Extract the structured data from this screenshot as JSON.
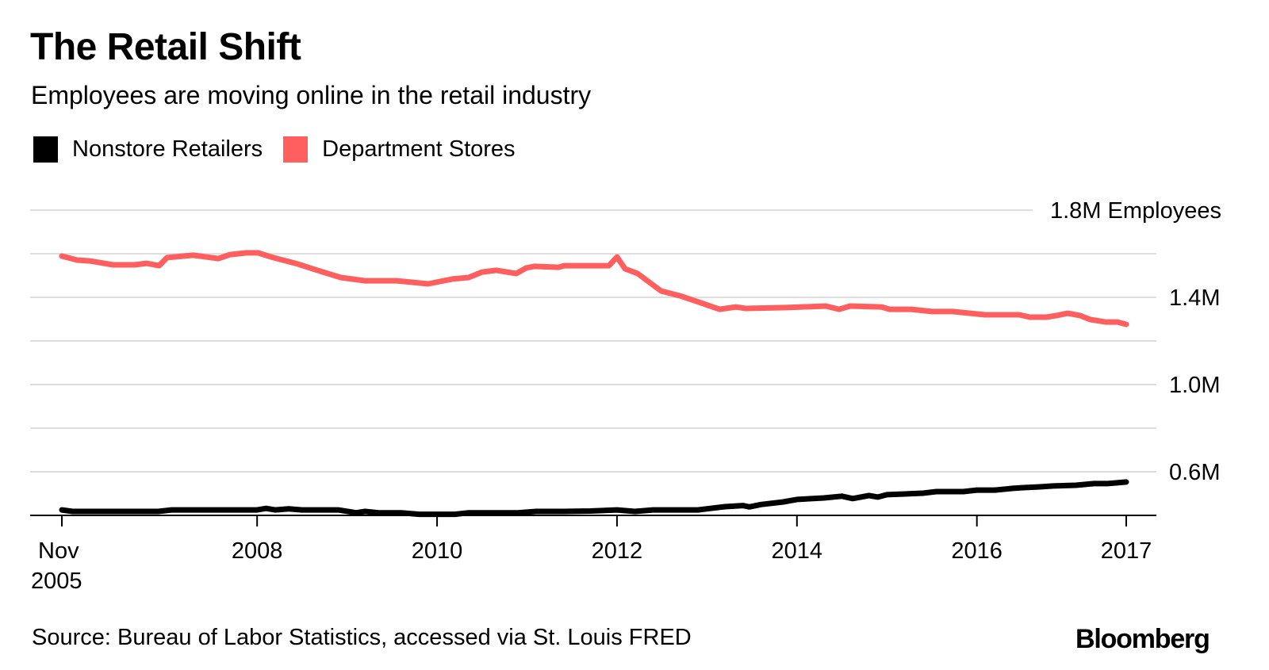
{
  "header": {
    "title": "The Retail Shift",
    "subtitle": "Employees are moving online in the retail industry"
  },
  "legend": [
    {
      "label": "Nonstore Retailers",
      "color": "#000000"
    },
    {
      "label": "Department Stores",
      "color": "#ff5f5f"
    }
  ],
  "footer": {
    "source": "Source: Bureau of Labor Statistics, accessed via St. Louis FRED",
    "brand": "Bloomberg"
  },
  "chart_data": {
    "type": "line",
    "title": "The Retail Shift",
    "subtitle": "Employees are moving online in the retail industry",
    "xlabel": "",
    "ylabel": "Employees",
    "ylim": [
      0.4,
      1.8
    ],
    "y_unit": "millions",
    "yticks": [
      {
        "value": 1.8,
        "label": "1.8M Employees"
      },
      {
        "value": 1.6,
        "label": ""
      },
      {
        "value": 1.4,
        "label": "1.4M"
      },
      {
        "value": 1.2,
        "label": ""
      },
      {
        "value": 1.0,
        "label": "1.0M"
      },
      {
        "value": 0.8,
        "label": ""
      },
      {
        "value": 0.6,
        "label": "0.6M"
      }
    ],
    "xlim": [
      2005.83,
      2017.66
    ],
    "xticks": [
      {
        "value": 2005.83,
        "label": "Nov",
        "label2": "2005"
      },
      {
        "value": 2008.0,
        "label": "2008"
      },
      {
        "value": 2010.0,
        "label": "2010"
      },
      {
        "value": 2012.0,
        "label": "2012"
      },
      {
        "value": 2014.0,
        "label": "2014"
      },
      {
        "value": 2016.0,
        "label": "2016"
      },
      {
        "value": 2017.66,
        "label": "2017"
      }
    ],
    "grid": true,
    "legend_position": "top-left",
    "series": [
      {
        "name": "Nonstore Retailers",
        "color": "#000000",
        "x": [
          2005.83,
          2005.95,
          2006.5,
          2006.9,
          2007.05,
          2007.5,
          2008.0,
          2008.1,
          2008.2,
          2008.35,
          2008.5,
          2008.9,
          2009.1,
          2009.2,
          2009.35,
          2009.6,
          2009.8,
          2010.0,
          2010.2,
          2010.35,
          2010.6,
          2010.9,
          2011.1,
          2011.4,
          2011.7,
          2012.0,
          2012.2,
          2012.4,
          2012.6,
          2012.9,
          2013.2,
          2013.4,
          2013.47,
          2013.6,
          2013.85,
          2014.0,
          2014.3,
          2014.5,
          2014.62,
          2014.8,
          2014.9,
          2015.0,
          2015.2,
          2015.4,
          2015.55,
          2015.85,
          2016.0,
          2016.2,
          2016.4,
          2016.5,
          2016.7,
          2016.85,
          2017.1,
          2017.3,
          2017.45,
          2017.66
        ],
        "values": [
          0.425,
          0.418,
          0.418,
          0.418,
          0.425,
          0.425,
          0.425,
          0.432,
          0.425,
          0.43,
          0.425,
          0.425,
          0.412,
          0.418,
          0.412,
          0.412,
          0.405,
          0.405,
          0.405,
          0.412,
          0.412,
          0.412,
          0.418,
          0.418,
          0.42,
          0.425,
          0.418,
          0.425,
          0.425,
          0.425,
          0.44,
          0.445,
          0.439,
          0.45,
          0.462,
          0.473,
          0.48,
          0.488,
          0.477,
          0.491,
          0.484,
          0.495,
          0.498,
          0.502,
          0.509,
          0.509,
          0.516,
          0.516,
          0.524,
          0.527,
          0.531,
          0.535,
          0.538,
          0.546,
          0.546,
          0.553
        ]
      },
      {
        "name": "Department Stores",
        "color": "#ff5f5f",
        "x": [
          2005.83,
          2006.0,
          2006.14,
          2006.4,
          2006.64,
          2006.77,
          2006.91,
          2007.0,
          2007.29,
          2007.57,
          2007.7,
          2007.88,
          2008.01,
          2008.18,
          2008.45,
          2008.67,
          2008.93,
          2009.2,
          2009.55,
          2009.9,
          2010.17,
          2010.35,
          2010.5,
          2010.66,
          2010.88,
          2010.99,
          2011.08,
          2011.35,
          2011.41,
          2011.91,
          2012.0,
          2012.09,
          2012.23,
          2012.49,
          2012.7,
          2012.88,
          2013.14,
          2013.32,
          2013.43,
          2013.88,
          2014.32,
          2014.47,
          2014.59,
          2014.94,
          2015.03,
          2015.27,
          2015.5,
          2015.73,
          2016.09,
          2016.47,
          2016.59,
          2016.77,
          2016.88,
          2017.01,
          2017.15,
          2017.26,
          2017.43,
          2017.56,
          2017.66
        ],
        "values": [
          1.589,
          1.571,
          1.567,
          1.549,
          1.549,
          1.556,
          1.545,
          1.582,
          1.593,
          1.578,
          1.596,
          1.604,
          1.604,
          1.582,
          1.553,
          1.524,
          1.491,
          1.476,
          1.476,
          1.462,
          1.484,
          1.491,
          1.516,
          1.524,
          1.509,
          1.535,
          1.542,
          1.538,
          1.545,
          1.545,
          1.585,
          1.531,
          1.509,
          1.429,
          1.407,
          1.382,
          1.345,
          1.356,
          1.349,
          1.353,
          1.36,
          1.345,
          1.36,
          1.356,
          1.345,
          1.345,
          1.335,
          1.335,
          1.32,
          1.32,
          1.309,
          1.309,
          1.316,
          1.327,
          1.316,
          1.298,
          1.287,
          1.287,
          1.276
        ]
      }
    ]
  }
}
